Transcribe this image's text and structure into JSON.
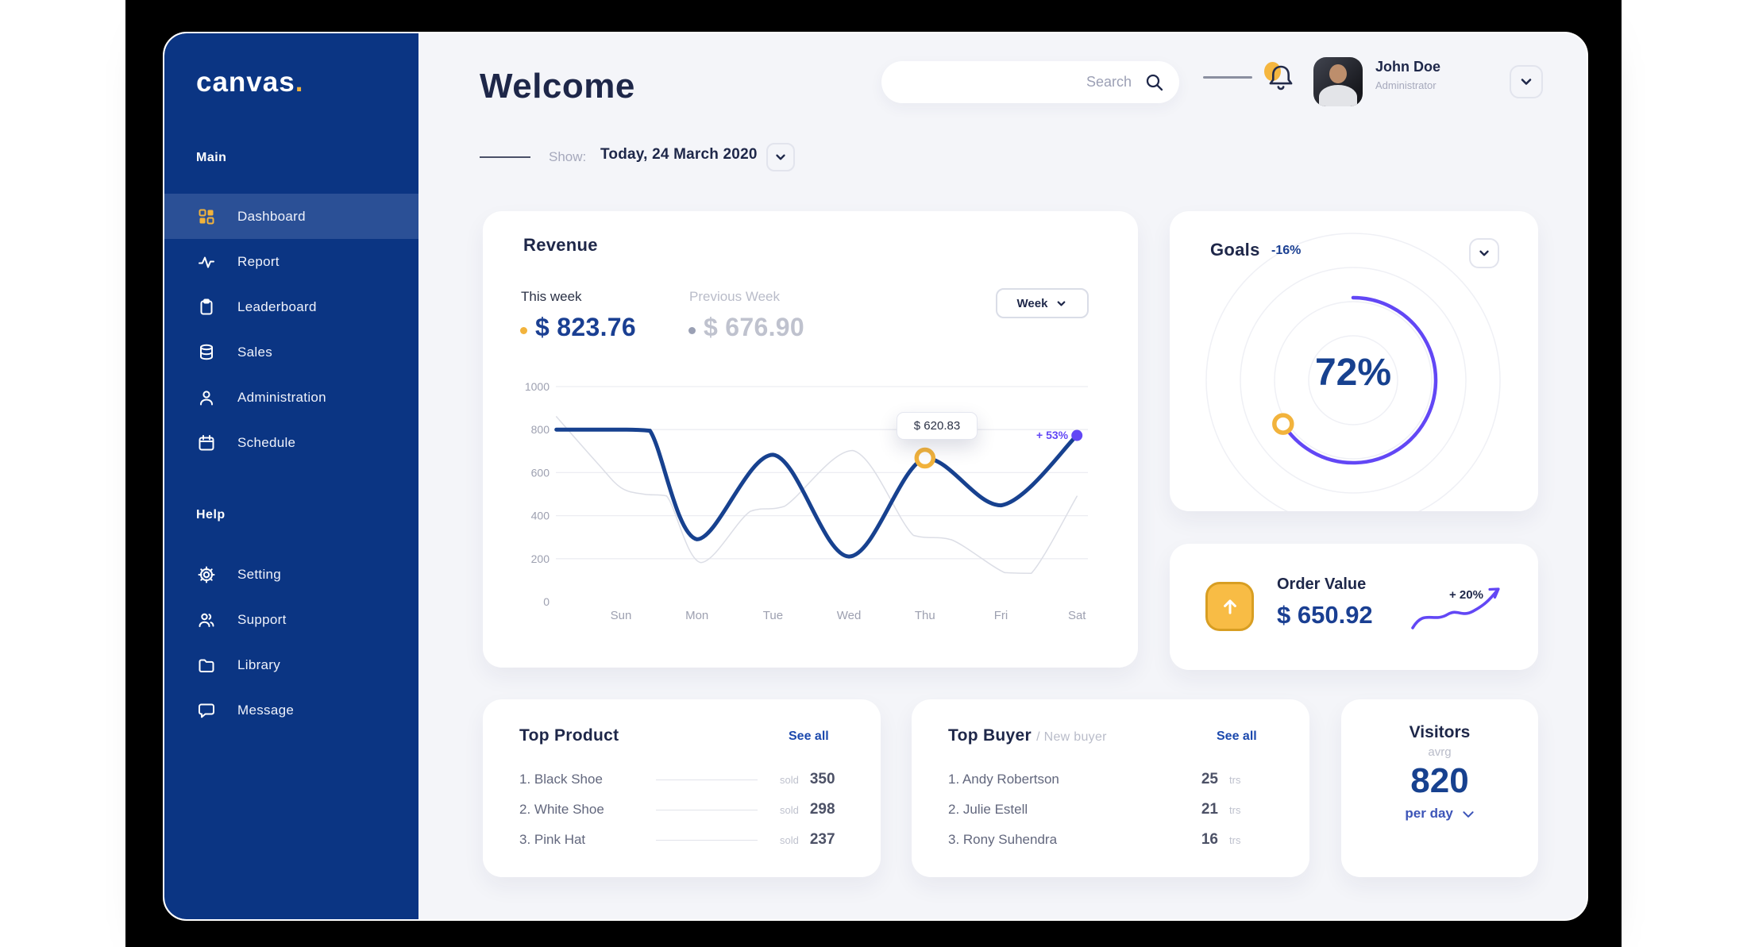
{
  "sidebar": {
    "logo": "canvas",
    "logo_dot": ".",
    "sections": [
      {
        "label": "Main",
        "items": [
          {
            "label": "Dashboard",
            "icon": "grid-icon",
            "active": true
          },
          {
            "label": "Report",
            "icon": "activity-icon",
            "active": false
          },
          {
            "label": "Leaderboard",
            "icon": "clipboard-icon",
            "active": false
          },
          {
            "label": "Sales",
            "icon": "database-icon",
            "active": false
          },
          {
            "label": "Administration",
            "icon": "user-icon",
            "active": false
          },
          {
            "label": "Schedule",
            "icon": "calendar-icon",
            "active": false
          }
        ]
      },
      {
        "label": "Help",
        "items": [
          {
            "label": "Setting",
            "icon": "gear-icon",
            "active": false
          },
          {
            "label": "Support",
            "icon": "users-icon",
            "active": false
          },
          {
            "label": "Library",
            "icon": "folder-icon",
            "active": false
          },
          {
            "label": "Message",
            "icon": "chat-icon",
            "active": false
          }
        ]
      }
    ]
  },
  "header": {
    "title": "Welcome",
    "search_placeholder": "Search",
    "user": {
      "name": "John Doe",
      "role": "Administrator"
    }
  },
  "show_filter": {
    "label": "Show:",
    "value": "Today, 24 March 2020"
  },
  "revenue": {
    "title": "Revenue",
    "this_week_label": "This week",
    "this_week_value": "$ 823.76",
    "prev_week_label": "Previous Week",
    "prev_week_value": "$ 676.90",
    "range_selector": "Week",
    "tooltip_label": "$ 620.83",
    "endpoint_label": "+ 53%"
  },
  "goals": {
    "title": "Goals",
    "delta": "-16%",
    "percent_label": "72%"
  },
  "order_value": {
    "title": "Order Value",
    "value": "$ 650.92",
    "delta": "+ 20%"
  },
  "top_product": {
    "title": "Top Product",
    "see_all": "See all",
    "unit": "sold",
    "items": [
      {
        "name": "1. Black Shoe",
        "count": "350"
      },
      {
        "name": "2. White Shoe",
        "count": "298"
      },
      {
        "name": "3. Pink Hat",
        "count": "237"
      }
    ]
  },
  "top_buyer": {
    "title": "Top Buyer",
    "subtitle": "/ New buyer",
    "see_all": "See all",
    "unit": "trs",
    "items": [
      {
        "name": "1. Andy Robertson",
        "count": "25"
      },
      {
        "name": "2. Julie Estell",
        "count": "21"
      },
      {
        "name": "3. Rony Suhendra",
        "count": "16"
      }
    ]
  },
  "visitors": {
    "title": "Visitors",
    "subtitle": "avrg",
    "value": "820",
    "per_label": "per day"
  },
  "colors": {
    "sidebar": "#0B3583",
    "sidebar_active": "#2B5096",
    "accent_yellow": "#F2B33C",
    "accent_purple": "#6247F5",
    "value_blue": "#17418F",
    "navy_text": "#1E2749",
    "muted_gray": "#B9BCC9",
    "line_gray": "#DCDEE6",
    "window_bg": "#F4F5F9"
  },
  "chart_data": [
    {
      "type": "line",
      "title": "Revenue",
      "categories": [
        "Sun",
        "Mon",
        "Tue",
        "Wed",
        "Thu",
        "Fri",
        "Sat"
      ],
      "yticks": [
        0,
        200,
        400,
        600,
        800,
        1000
      ],
      "ylim": [
        0,
        1000
      ],
      "grid": "horizontal",
      "legend_position": "none",
      "series": [
        {
          "name": "Previous Week",
          "color": "#DCDEE6",
          "width": 1.5,
          "points": [
            [
              -0.85,
              860
            ],
            [
              -0.3,
              640
            ],
            [
              0,
              530
            ],
            [
              0.3,
              500
            ],
            [
              0.6,
              492
            ],
            [
              1.05,
              182
            ],
            [
              1.7,
              420
            ],
            [
              2.15,
              443
            ],
            [
              3.05,
              703
            ],
            [
              3.85,
              308
            ],
            [
              4.35,
              288
            ],
            [
              5.05,
              135
            ],
            [
              5.4,
              132
            ],
            [
              6,
              490
            ]
          ]
        },
        {
          "name": "This week",
          "color": "#17418F",
          "width": 5,
          "points": [
            [
              -0.85,
              800
            ],
            [
              0,
              800
            ],
            [
              0.38,
              795
            ],
            [
              1,
              290
            ],
            [
              2,
              683
            ],
            [
              3,
              210
            ],
            [
              4,
              668
            ],
            [
              5,
              448
            ],
            [
              6,
              773
            ]
          ],
          "values_by_day": [
            800,
            290,
            683,
            210,
            668,
            448,
            773
          ]
        }
      ],
      "annotations": {
        "marker": {
          "day": 4,
          "value": 668,
          "label": "$ 620.83",
          "color": "#F2B33C"
        },
        "endpoint": {
          "day": 6,
          "value": 773,
          "label": "+ 53%",
          "color": "#6247F5"
        }
      }
    },
    {
      "type": "donut",
      "title": "Goals",
      "percent": 72,
      "delta": "-16%",
      "arc_sweep_deg": 238,
      "arc_color": "#6247F5",
      "marker_color": "#F2B33C"
    }
  ]
}
